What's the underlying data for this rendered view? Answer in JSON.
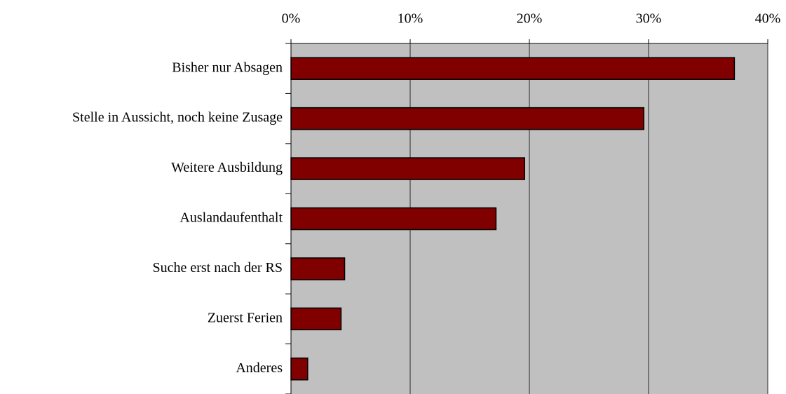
{
  "chart_data": {
    "type": "bar",
    "orientation": "horizontal",
    "categories": [
      "Bisher nur Absagen",
      "Stelle in Aussicht, noch keine Zusage",
      "Weitere Ausbildung",
      "Auslandaufenthalt",
      "Suche erst nach der RS",
      "Zuerst Ferien",
      "Anderes"
    ],
    "values": [
      37.2,
      29.6,
      19.6,
      17.2,
      4.5,
      4.2,
      1.4
    ],
    "color": "#800000",
    "xlim": [
      0,
      40
    ],
    "xticks": [
      {
        "value": 0,
        "label": "0%"
      },
      {
        "value": 10,
        "label": "10%"
      },
      {
        "value": 20,
        "label": "20%"
      },
      {
        "value": 30,
        "label": "30%"
      },
      {
        "value": 40,
        "label": "40%"
      }
    ],
    "grid": true
  }
}
